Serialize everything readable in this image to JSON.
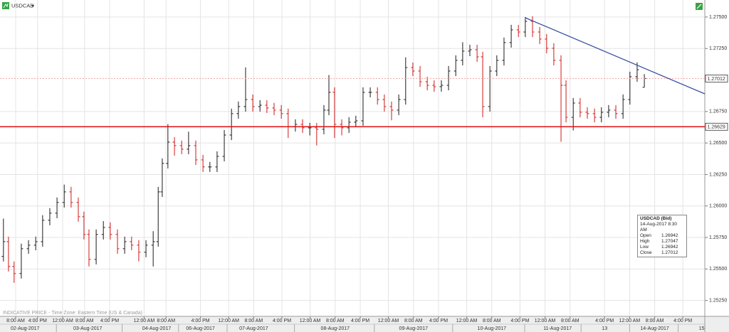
{
  "chart_data": {
    "type": "ohlc",
    "title": "USDCAD",
    "note": "INDICATIVE PRICE - Time Zone: Eastern Time (US & Canada)",
    "up_color": "#1a1a1a",
    "down_color": "#d01818",
    "grid": true,
    "xlim": [
      0,
      225
    ],
    "ylim": [
      1.25124,
      1.27635
    ],
    "yticks": [
      {
        "value": 1.275,
        "label": "1.27500"
      },
      {
        "value": 1.2725,
        "label": "1.27250"
      },
      {
        "value": 1.2675,
        "label": "1.26750"
      },
      {
        "value": 1.265,
        "label": "1.26500"
      },
      {
        "value": 1.2625,
        "label": "1.26250"
      },
      {
        "value": 1.26,
        "label": "1.26000"
      },
      {
        "value": 1.2575,
        "label": "1.25750"
      },
      {
        "value": 1.255,
        "label": "1.25500"
      },
      {
        "value": 1.2525,
        "label": "1.25250"
      }
    ],
    "xticks": [
      {
        "value": 5,
        "label": "8:00 AM"
      },
      {
        "value": 12,
        "label": "4:00 PM"
      },
      {
        "value": 20,
        "label": "12:00 AM"
      },
      {
        "value": 27,
        "label": "8:00 AM"
      },
      {
        "value": 35,
        "label": "4:00 PM"
      },
      {
        "value": 46,
        "label": "12:00 AM"
      },
      {
        "value": 53,
        "label": "8:00 AM"
      },
      {
        "value": 64,
        "label": "4:00 PM"
      },
      {
        "value": 73,
        "label": "12:00 AM"
      },
      {
        "value": 81,
        "label": "8:00 AM"
      },
      {
        "value": 90,
        "label": "4:00 PM"
      },
      {
        "value": 99,
        "label": "12:00 AM"
      },
      {
        "value": 107,
        "label": "8:00 AM"
      },
      {
        "value": 115,
        "label": "4:00 PM"
      },
      {
        "value": 124,
        "label": "12:00 AM"
      },
      {
        "value": 132,
        "label": "8:00 AM"
      },
      {
        "value": 140,
        "label": "4:00 PM"
      },
      {
        "value": 149,
        "label": "12:00 AM"
      },
      {
        "value": 157,
        "label": "8:00 AM"
      },
      {
        "value": 166,
        "label": "4:00 PM"
      },
      {
        "value": 174,
        "label": "12:00 AM"
      },
      {
        "value": 182,
        "label": "8:00 AM"
      },
      {
        "value": 193,
        "label": "4:00 PM"
      },
      {
        "value": 201,
        "label": "12:00 AM"
      },
      {
        "value": 209,
        "label": "8:00 AM"
      },
      {
        "value": 218,
        "label": "4:00 PM"
      }
    ],
    "date_ticks": [
      {
        "value": 8,
        "label": "02-Aug-2017"
      },
      {
        "value": 28,
        "label": "03-Aug-2017"
      },
      {
        "value": 50,
        "label": "04-Aug-2017"
      },
      {
        "value": 64,
        "label": "06-Aug-2017"
      },
      {
        "value": 81,
        "label": "07-Aug-2017"
      },
      {
        "value": 107,
        "label": "08-Aug-2017"
      },
      {
        "value": 132,
        "label": "09-Aug-2017"
      },
      {
        "value": 157,
        "label": "10-Aug-2017"
      },
      {
        "value": 178,
        "label": "11-Aug-2017"
      },
      {
        "value": 193,
        "label": "13"
      },
      {
        "value": 209,
        "label": "14-Aug-2017"
      },
      {
        "value": 224,
        "label": "15"
      }
    ],
    "x": [
      1.1,
      2.7,
      4.5,
      6.8,
      9.1,
      11.4,
      13.6,
      15.9,
      18.2,
      20.5,
      22.7,
      25,
      26.8,
      28.4,
      30.7,
      33,
      35.2,
      37.5,
      39.8,
      42,
      44.3,
      46.6,
      48.9,
      50.5,
      51.8,
      53.6,
      55.7,
      58,
      60.2,
      62.5,
      64.8,
      67,
      69.3,
      71.6,
      73.9,
      76.1,
      78.4,
      80.7,
      83,
      85.2,
      87.5,
      89.8,
      92,
      94.3,
      96.6,
      98.9,
      101.1,
      103.4,
      105,
      106.8,
      109.1,
      111.4,
      113.6,
      115.9,
      118.2,
      120.5,
      122.7,
      125,
      127.3,
      129.5,
      131.8,
      134.1,
      136.4,
      138.6,
      140.9,
      143.2,
      145.5,
      147.7,
      150,
      152.3,
      154.1,
      156.4,
      158.6,
      160.9,
      163.2,
      165.5,
      167.7,
      170,
      172.3,
      174.5,
      176.8,
      179.1,
      180.7,
      183,
      185.2,
      187.5,
      189.8,
      192,
      194.3,
      196.6,
      198.9,
      201.1,
      203.4,
      205.7
    ],
    "open": [
      1.256,
      1.25717,
      1.2552,
      1.25464,
      1.25661,
      1.25689,
      1.25717,
      1.25887,
      1.25943,
      1.26028,
      1.26112,
      1.26028,
      1.25915,
      1.25774,
      1.25576,
      1.25774,
      1.2583,
      1.25774,
      1.25661,
      1.25717,
      1.25689,
      1.25633,
      1.25689,
      1.25717,
      1.26112,
      1.26338,
      1.26507,
      1.26479,
      1.26451,
      1.26479,
      1.26366,
      1.2631,
      1.2631,
      1.26394,
      1.26563,
      1.26733,
      1.26789,
      1.26845,
      1.26789,
      1.268,
      1.26778,
      1.26761,
      1.26733,
      1.26631,
      1.26648,
      1.2662,
      1.2662,
      1.26609,
      1.26761,
      1.26902,
      1.26648,
      1.2662,
      1.26665,
      1.26676,
      1.26902,
      1.26902,
      1.26845,
      1.26789,
      1.26761,
      1.26845,
      1.27099,
      1.27071,
      1.26986,
      1.26958,
      1.26947,
      1.26958,
      1.27071,
      1.27156,
      1.27229,
      1.2724,
      1.27184,
      1.26789,
      1.27071,
      1.27156,
      1.27297,
      1.27398,
      1.27381,
      1.27466,
      1.27381,
      1.27325,
      1.27252,
      1.27156,
      1.26958,
      1.26704,
      1.26817,
      1.26744,
      1.26733,
      1.26704,
      1.26744,
      1.26761,
      1.26733,
      1.26845,
      1.27026,
      1.26942
    ],
    "high": [
      1.259,
      1.25757,
      1.2556,
      1.25701,
      1.25729,
      1.25757,
      1.25927,
      1.25983,
      1.26068,
      1.2617,
      1.26152,
      1.26068,
      1.25955,
      1.25814,
      1.25814,
      1.2588,
      1.2587,
      1.25814,
      1.25757,
      1.25757,
      1.25729,
      1.25729,
      1.258,
      1.26152,
      1.26378,
      1.2665,
      1.26547,
      1.26519,
      1.2659,
      1.26519,
      1.26406,
      1.2635,
      1.26434,
      1.26603,
      1.26773,
      1.26829,
      1.271,
      1.26885,
      1.2684,
      1.2684,
      1.26818,
      1.26801,
      1.26773,
      1.26688,
      1.26688,
      1.2666,
      1.2666,
      1.26801,
      1.2704,
      1.26942,
      1.26688,
      1.26705,
      1.26716,
      1.26942,
      1.26942,
      1.26942,
      1.26885,
      1.26829,
      1.26885,
      1.2718,
      1.27139,
      1.27111,
      1.27026,
      1.26998,
      1.26998,
      1.27111,
      1.27196,
      1.273,
      1.2728,
      1.2728,
      1.27224,
      1.27111,
      1.27196,
      1.27337,
      1.27438,
      1.27438,
      1.275,
      1.27506,
      1.27421,
      1.27365,
      1.27292,
      1.27196,
      1.26998,
      1.26857,
      1.26857,
      1.26784,
      1.26773,
      1.26784,
      1.26801,
      1.26801,
      1.26885,
      1.27066,
      1.2714,
      1.27047
    ],
    "low": [
      1.2556,
      1.2548,
      1.2539,
      1.25424,
      1.25621,
      1.25649,
      1.25677,
      1.25847,
      1.25903,
      1.25988,
      1.25988,
      1.25875,
      1.25734,
      1.2552,
      1.25536,
      1.25734,
      1.25734,
      1.25621,
      1.25621,
      1.25649,
      1.2556,
      1.25593,
      1.2552,
      1.25677,
      1.26072,
      1.26298,
      1.264,
      1.26411,
      1.26411,
      1.26326,
      1.2627,
      1.2627,
      1.2627,
      1.26354,
      1.26523,
      1.26693,
      1.26749,
      1.26749,
      1.26749,
      1.26738,
      1.26721,
      1.26693,
      1.2654,
      1.26591,
      1.2658,
      1.2656,
      1.2648,
      1.26569,
      1.26721,
      1.2654,
      1.2656,
      1.2658,
      1.26625,
      1.26636,
      1.26862,
      1.26805,
      1.26749,
      1.2668,
      1.26721,
      1.26805,
      1.27031,
      1.26946,
      1.26918,
      1.26907,
      1.26907,
      1.26918,
      1.27031,
      1.27116,
      1.27189,
      1.27144,
      1.26704,
      1.26749,
      1.27031,
      1.27116,
      1.27257,
      1.27341,
      1.27341,
      1.27341,
      1.27285,
      1.27212,
      1.27116,
      1.2651,
      1.26664,
      1.266,
      1.26704,
      1.26693,
      1.26664,
      1.26664,
      1.26704,
      1.26693,
      1.26693,
      1.26805,
      1.26986,
      1.26942
    ],
    "close": [
      1.25717,
      1.2552,
      1.25464,
      1.25661,
      1.25689,
      1.25717,
      1.25887,
      1.25943,
      1.26028,
      1.26112,
      1.26028,
      1.25915,
      1.25774,
      1.25576,
      1.25774,
      1.2583,
      1.25774,
      1.25661,
      1.25717,
      1.25689,
      1.25633,
      1.25689,
      1.25717,
      1.26112,
      1.26338,
      1.26507,
      1.26479,
      1.26451,
      1.26479,
      1.26366,
      1.2631,
      1.2631,
      1.26394,
      1.26563,
      1.26733,
      1.26789,
      1.26845,
      1.26789,
      1.268,
      1.26778,
      1.26761,
      1.26733,
      1.26631,
      1.26648,
      1.2662,
      1.2662,
      1.26609,
      1.26761,
      1.26902,
      1.26648,
      1.2662,
      1.26665,
      1.26676,
      1.26902,
      1.26902,
      1.26845,
      1.26789,
      1.26761,
      1.26845,
      1.27099,
      1.27071,
      1.26986,
      1.26958,
      1.26947,
      1.26958,
      1.27071,
      1.27156,
      1.27229,
      1.2724,
      1.27184,
      1.26789,
      1.27071,
      1.27156,
      1.27297,
      1.27398,
      1.27381,
      1.27466,
      1.27381,
      1.27325,
      1.27252,
      1.27156,
      1.26958,
      1.26704,
      1.26817,
      1.26744,
      1.26733,
      1.26704,
      1.26744,
      1.26761,
      1.26733,
      1.26845,
      1.27026,
      1.27082,
      1.27012
    ],
    "levels": [
      {
        "value": 1.27012,
        "color": "#f0a0a0",
        "dashed": true
      },
      {
        "value": 1.26629,
        "color": "#e01010",
        "dashed": false
      }
    ],
    "trendline": {
      "x": [
        167.7,
        225
      ],
      "values": [
        1.27494,
        1.2689
      ],
      "color": "#3a4fa0"
    },
    "info": {
      "title": "USDCAD (Bid)",
      "time": "14-Aug-2017 8:30 AM",
      "rows": [
        {
          "label": "Open",
          "value": 1.26942
        },
        {
          "label": "High",
          "value": 1.27047
        },
        {
          "label": "Low",
          "value": 1.26942
        },
        {
          "label": "Close",
          "value": 1.27012
        }
      ]
    }
  }
}
